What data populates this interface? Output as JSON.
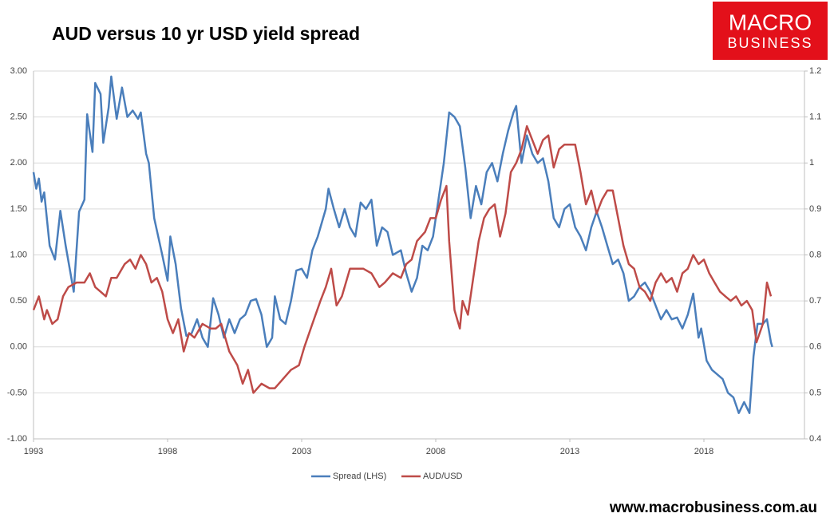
{
  "chart_data": {
    "type": "line",
    "title": "AUD versus 10 yr USD yield spread",
    "logo": {
      "line1": "MACRO",
      "line2": "BUSINESS"
    },
    "source": "www.macrobusiness.com.au",
    "xlim": [
      1993,
      2021.75
    ],
    "xticks": [
      1993,
      1998,
      2003,
      2008,
      2013,
      2018
    ],
    "ylim": [
      -1,
      3
    ],
    "yticks": [
      {
        "value": -1,
        "label": "-1.00"
      },
      {
        "value": -0.5,
        "label": "-0.50"
      },
      {
        "value": 0,
        "label": "0.00"
      },
      {
        "value": 0.5,
        "label": "0.50"
      },
      {
        "value": 1,
        "label": "1.00"
      },
      {
        "value": 1.5,
        "label": "1.50"
      },
      {
        "value": 2,
        "label": "2.00"
      },
      {
        "value": 2.5,
        "label": "2.50"
      },
      {
        "value": 3,
        "label": "3.00"
      }
    ],
    "y2lim": [
      0.4,
      1.2
    ],
    "y2ticks": [
      0.4,
      0.5,
      0.6,
      0.7,
      0.8,
      0.9,
      1,
      1.1,
      1.2
    ],
    "grid": true,
    "legend": "bottom",
    "series": [
      {
        "name": "Spread (LHS)",
        "color": "#4a7ebb",
        "axis": "y",
        "x": [
          1993.0,
          1993.1,
          1993.2,
          1993.3,
          1993.4,
          1993.6,
          1993.8,
          1994.0,
          1994.2,
          1994.5,
          1994.7,
          1994.9,
          1995.0,
          1995.2,
          1995.3,
          1995.5,
          1995.6,
          1995.8,
          1995.9,
          1996.1,
          1996.3,
          1996.5,
          1996.7,
          1996.9,
          1997.0,
          1997.2,
          1997.3,
          1997.5,
          1997.8,
          1998.0,
          1998.1,
          1998.3,
          1998.5,
          1998.7,
          1998.9,
          1999.1,
          1999.3,
          1999.5,
          1999.7,
          1999.9,
          2000.1,
          2000.3,
          2000.5,
          2000.7,
          2000.9,
          2001.1,
          2001.3,
          2001.5,
          2001.7,
          2001.9,
          2002.0,
          2002.2,
          2002.4,
          2002.6,
          2002.8,
          2003.0,
          2003.2,
          2003.4,
          2003.6,
          2003.9,
          2004.0,
          2004.2,
          2004.4,
          2004.6,
          2004.8,
          2005.0,
          2005.2,
          2005.4,
          2005.6,
          2005.8,
          2006.0,
          2006.2,
          2006.4,
          2006.7,
          2006.9,
          2007.1,
          2007.3,
          2007.5,
          2007.7,
          2007.9,
          2008.1,
          2008.3,
          2008.5,
          2008.7,
          2008.9,
          2009.1,
          2009.3,
          2009.5,
          2009.7,
          2009.9,
          2010.1,
          2010.3,
          2010.5,
          2010.7,
          2010.9,
          2011.0,
          2011.2,
          2011.4,
          2011.6,
          2011.8,
          2012.0,
          2012.2,
          2012.4,
          2012.6,
          2012.8,
          2013.0,
          2013.2,
          2013.4,
          2013.6,
          2013.8,
          2014.0,
          2014.2,
          2014.4,
          2014.6,
          2014.8,
          2015.0,
          2015.2,
          2015.4,
          2015.6,
          2015.8,
          2016.0,
          2016.2,
          2016.4,
          2016.6,
          2016.8,
          2017.0,
          2017.2,
          2017.4,
          2017.6,
          2017.8,
          2017.9,
          2018.1,
          2018.3,
          2018.5,
          2018.7,
          2018.9,
          2019.1,
          2019.3,
          2019.5,
          2019.7,
          2019.85,
          2020.0,
          2020.2,
          2020.35,
          2020.5,
          2020.55
        ],
        "values": [
          1.9,
          1.72,
          1.83,
          1.58,
          1.68,
          1.1,
          0.95,
          1.48,
          1.1,
          0.6,
          1.47,
          1.6,
          2.53,
          2.12,
          2.87,
          2.75,
          2.22,
          2.6,
          2.94,
          2.48,
          2.82,
          2.5,
          2.57,
          2.48,
          2.55,
          2.1,
          2.0,
          1.4,
          1.0,
          0.72,
          1.2,
          0.9,
          0.42,
          0.12,
          0.15,
          0.3,
          0.1,
          0.0,
          0.53,
          0.35,
          0.1,
          0.3,
          0.15,
          0.3,
          0.35,
          0.5,
          0.52,
          0.35,
          0.0,
          0.1,
          0.55,
          0.3,
          0.25,
          0.5,
          0.83,
          0.85,
          0.75,
          1.05,
          1.2,
          1.5,
          1.72,
          1.5,
          1.3,
          1.5,
          1.3,
          1.2,
          1.57,
          1.5,
          1.6,
          1.1,
          1.3,
          1.25,
          1.0,
          1.05,
          0.8,
          0.6,
          0.75,
          1.1,
          1.05,
          1.2,
          1.6,
          2.0,
          2.55,
          2.5,
          2.4,
          1.95,
          1.4,
          1.75,
          1.55,
          1.9,
          2.0,
          1.8,
          2.1,
          2.35,
          2.55,
          2.62,
          2.0,
          2.3,
          2.1,
          2.0,
          2.05,
          1.8,
          1.4,
          1.3,
          1.5,
          1.55,
          1.3,
          1.2,
          1.05,
          1.3,
          1.47,
          1.3,
          1.1,
          0.9,
          0.95,
          0.8,
          0.5,
          0.55,
          0.65,
          0.7,
          0.6,
          0.45,
          0.3,
          0.4,
          0.3,
          0.32,
          0.2,
          0.35,
          0.58,
          0.1,
          0.2,
          -0.15,
          -0.25,
          -0.3,
          -0.35,
          -0.5,
          -0.55,
          -0.72,
          -0.6,
          -0.72,
          -0.1,
          0.25,
          0.25,
          0.3,
          0.05,
          0.0
        ]
      },
      {
        "name": "AUD/USD",
        "color": "#be4b48",
        "axis": "y2",
        "x": [
          1993.0,
          1993.2,
          1993.4,
          1993.5,
          1993.7,
          1993.9,
          1994.1,
          1994.3,
          1994.6,
          1994.9,
          1995.1,
          1995.3,
          1995.5,
          1995.7,
          1995.9,
          1996.1,
          1996.4,
          1996.6,
          1996.8,
          1997.0,
          1997.2,
          1997.4,
          1997.6,
          1997.8,
          1998.0,
          1998.2,
          1998.4,
          1998.6,
          1998.8,
          1999.0,
          1999.3,
          1999.6,
          1999.8,
          2000.0,
          2000.3,
          2000.6,
          2000.8,
          2001.0,
          2001.2,
          2001.5,
          2001.8,
          2002.0,
          2002.3,
          2002.6,
          2002.9,
          2003.1,
          2003.4,
          2003.7,
          2003.9,
          2004.1,
          2004.3,
          2004.5,
          2004.8,
          2005.0,
          2005.3,
          2005.6,
          2005.9,
          2006.1,
          2006.4,
          2006.7,
          2006.9,
          2007.1,
          2007.3,
          2007.6,
          2007.8,
          2008.0,
          2008.2,
          2008.4,
          2008.5,
          2008.7,
          2008.9,
          2009.0,
          2009.2,
          2009.4,
          2009.6,
          2009.8,
          2010.0,
          2010.2,
          2010.4,
          2010.6,
          2010.8,
          2011.0,
          2011.2,
          2011.4,
          2011.6,
          2011.8,
          2012.0,
          2012.2,
          2012.4,
          2012.6,
          2012.8,
          2013.0,
          2013.2,
          2013.4,
          2013.6,
          2013.8,
          2014.0,
          2014.2,
          2014.4,
          2014.6,
          2014.8,
          2015.0,
          2015.2,
          2015.4,
          2015.6,
          2015.8,
          2016.0,
          2016.2,
          2016.4,
          2016.6,
          2016.8,
          2017.0,
          2017.2,
          2017.4,
          2017.6,
          2017.8,
          2018.0,
          2018.2,
          2018.4,
          2018.6,
          2018.8,
          2019.0,
          2019.2,
          2019.4,
          2019.6,
          2019.8,
          2019.96,
          2020.2,
          2020.35,
          2020.5
        ],
        "values": [
          0.68,
          0.71,
          0.66,
          0.68,
          0.65,
          0.66,
          0.71,
          0.73,
          0.74,
          0.74,
          0.76,
          0.73,
          0.72,
          0.71,
          0.75,
          0.75,
          0.78,
          0.79,
          0.77,
          0.8,
          0.78,
          0.74,
          0.75,
          0.72,
          0.66,
          0.63,
          0.66,
          0.59,
          0.63,
          0.62,
          0.65,
          0.64,
          0.64,
          0.65,
          0.59,
          0.56,
          0.52,
          0.55,
          0.5,
          0.52,
          0.51,
          0.51,
          0.53,
          0.55,
          0.56,
          0.6,
          0.65,
          0.7,
          0.73,
          0.77,
          0.69,
          0.71,
          0.77,
          0.77,
          0.77,
          0.76,
          0.73,
          0.74,
          0.76,
          0.75,
          0.78,
          0.79,
          0.83,
          0.85,
          0.88,
          0.88,
          0.92,
          0.95,
          0.83,
          0.68,
          0.64,
          0.7,
          0.67,
          0.75,
          0.83,
          0.88,
          0.9,
          0.91,
          0.84,
          0.89,
          0.98,
          1.0,
          1.03,
          1.08,
          1.05,
          1.02,
          1.05,
          1.06,
          0.99,
          1.03,
          1.04,
          1.04,
          1.04,
          0.98,
          0.91,
          0.94,
          0.89,
          0.92,
          0.94,
          0.94,
          0.88,
          0.82,
          0.78,
          0.77,
          0.73,
          0.72,
          0.7,
          0.74,
          0.76,
          0.74,
          0.75,
          0.72,
          0.76,
          0.77,
          0.8,
          0.78,
          0.79,
          0.76,
          0.74,
          0.72,
          0.71,
          0.7,
          0.71,
          0.69,
          0.7,
          0.68,
          0.61,
          0.65,
          0.74,
          0.71
        ]
      }
    ]
  }
}
